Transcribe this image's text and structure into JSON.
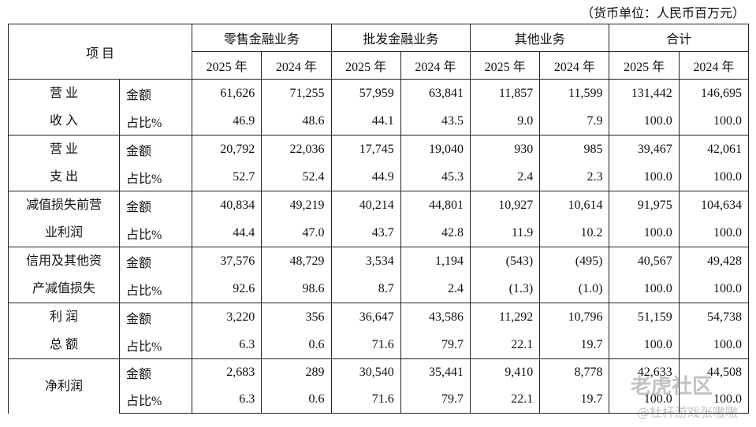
{
  "unit": "（货币单位：人民币百万元）",
  "header": {
    "item": "项 目",
    "groups": [
      "零售金融业务",
      "批发金融业务",
      "其他业务",
      "合计"
    ],
    "years": [
      "2025 年",
      "2024 年",
      "2025 年",
      "2024 年",
      "2025 年",
      "2024 年",
      "2025 年",
      "2024 年"
    ]
  },
  "rows": [
    {
      "label": [
        "营 业",
        "收 入"
      ],
      "lines": [
        {
          "type": "金额",
          "values": [
            "61,626",
            "71,255",
            "57,959",
            "63,841",
            "11,857",
            "11,599",
            "131,442",
            "146,695"
          ]
        },
        {
          "type": "占比%",
          "values": [
            "46.9",
            "48.6",
            "44.1",
            "43.5",
            "9.0",
            "7.9",
            "100.0",
            "100.0"
          ]
        }
      ]
    },
    {
      "label": [
        "营 业",
        "支 出"
      ],
      "lines": [
        {
          "type": "金额",
          "values": [
            "20,792",
            "22,036",
            "17,745",
            "19,040",
            "930",
            "985",
            "39,467",
            "42,061"
          ]
        },
        {
          "type": "占比%",
          "values": [
            "52.7",
            "52.4",
            "44.9",
            "45.3",
            "2.4",
            "2.3",
            "100.0",
            "100.0"
          ]
        }
      ]
    },
    {
      "label": [
        "减值损失前营",
        "业利润"
      ],
      "lines": [
        {
          "type": "金额",
          "values": [
            "40,834",
            "49,219",
            "40,214",
            "44,801",
            "10,927",
            "10,614",
            "91,975",
            "104,634"
          ]
        },
        {
          "type": "占比%",
          "values": [
            "44.4",
            "47.0",
            "43.7",
            "42.8",
            "11.9",
            "10.2",
            "100.0",
            "100.0"
          ]
        }
      ]
    },
    {
      "label": [
        "信用及其他资",
        "产减值损失"
      ],
      "lines": [
        {
          "type": "金额",
          "values": [
            "37,576",
            "48,729",
            "3,534",
            "1,194",
            "(543)",
            "(495)",
            "40,567",
            "49,428"
          ]
        },
        {
          "type": "占比%",
          "values": [
            "92.6",
            "98.6",
            "8.7",
            "2.4",
            "(1.3)",
            "(1.0)",
            "100.0",
            "100.0"
          ]
        }
      ]
    },
    {
      "label": [
        "利 润",
        "总 额"
      ],
      "lines": [
        {
          "type": "金额",
          "values": [
            "3,220",
            "356",
            "36,647",
            "43,586",
            "11,292",
            "10,796",
            "51,159",
            "54,738"
          ]
        },
        {
          "type": "占比%",
          "values": [
            "6.3",
            "0.6",
            "71.6",
            "79.7",
            "22.1",
            "19.7",
            "100.0",
            "100.0"
          ]
        }
      ]
    },
    {
      "label": [
        "净利润"
      ],
      "lines": [
        {
          "type": "金额",
          "values": [
            "2,683",
            "289",
            "30,540",
            "35,441",
            "9,410",
            "8,778",
            "42,633",
            "44,508"
          ]
        },
        {
          "type": "占比%",
          "values": [
            "6.3",
            "0.6",
            "71.6",
            "79.7",
            "22.1",
            "19.7",
            "100.0",
            "100.0"
          ]
        }
      ]
    }
  ],
  "watermark": {
    "brand": "老虎社区",
    "handle": "@杜杆游戏张嗷嗷"
  }
}
